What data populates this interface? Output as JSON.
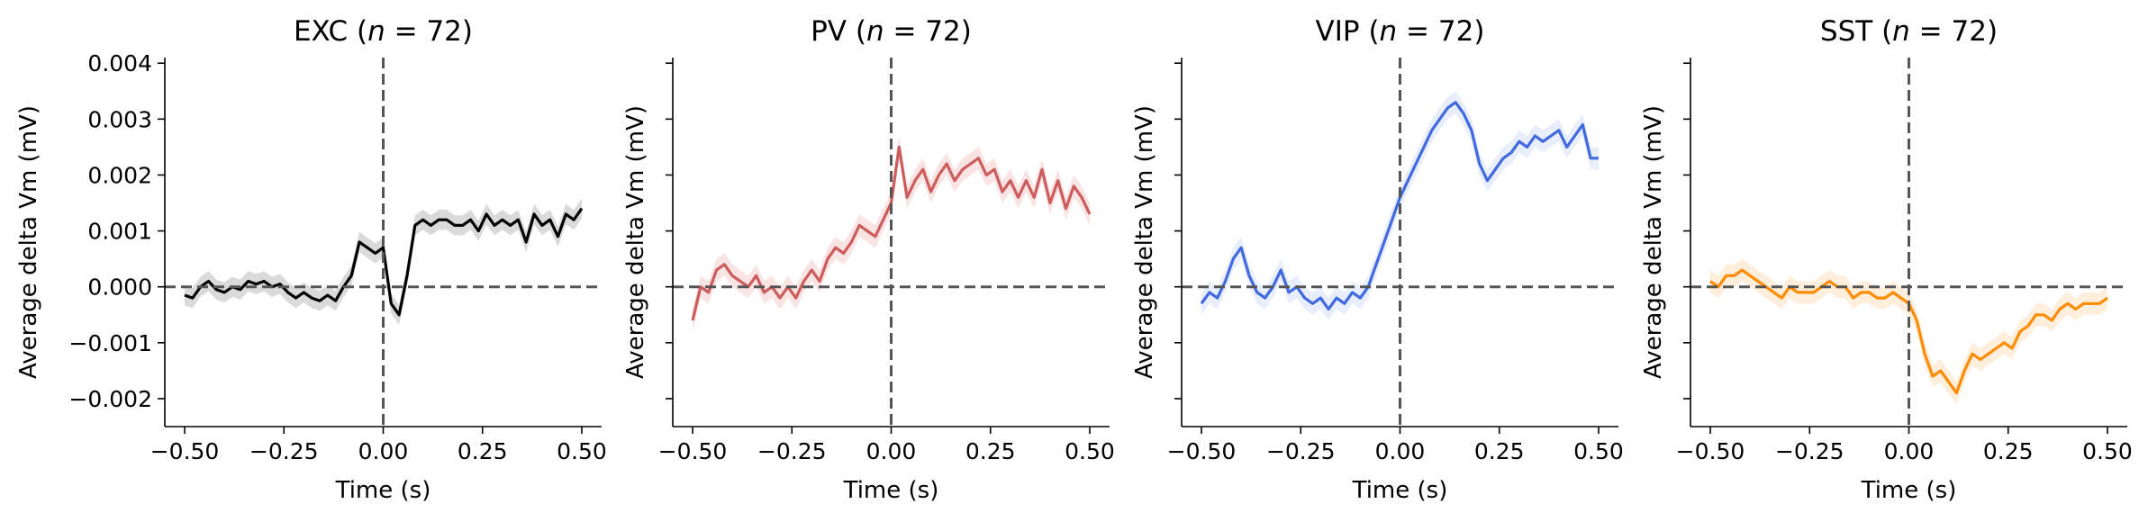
{
  "chart_data": [
    {
      "type": "line",
      "title": "EXC (",
      "n_symbol": "n",
      "n_eq": " = 72",
      "title_close": ")",
      "xlabel": "Time (s)",
      "ylabel": "Average delta Vm (mV)",
      "xlim": [
        -0.55,
        0.55
      ],
      "ylim": [
        -0.0025,
        0.0041
      ],
      "xticks": [
        -0.5,
        -0.25,
        0.0,
        0.25,
        0.5
      ],
      "xtick_labels": [
        "−0.50",
        "−0.25",
        "0.00",
        "0.25",
        "0.50"
      ],
      "yticks": [
        -0.002,
        -0.001,
        0.0,
        0.001,
        0.002,
        0.003,
        0.004
      ],
      "ytick_labels": [
        "−0.002",
        "−0.001",
        "0.000",
        "0.001",
        "0.002",
        "0.003",
        "0.004"
      ],
      "show_ytick_labels": true,
      "color": "#000000",
      "band_color": "#bbbbbb",
      "band_halfwidth": 0.00018,
      "series": [
        {
          "name": "EXC",
          "x": [
            -0.5,
            -0.48,
            -0.46,
            -0.44,
            -0.42,
            -0.4,
            -0.38,
            -0.36,
            -0.34,
            -0.32,
            -0.3,
            -0.28,
            -0.26,
            -0.24,
            -0.22,
            -0.2,
            -0.18,
            -0.16,
            -0.14,
            -0.12,
            -0.1,
            -0.08,
            -0.06,
            -0.04,
            -0.02,
            0.0,
            0.02,
            0.04,
            0.06,
            0.08,
            0.1,
            0.12,
            0.14,
            0.16,
            0.18,
            0.2,
            0.22,
            0.24,
            0.26,
            0.28,
            0.3,
            0.32,
            0.34,
            0.36,
            0.38,
            0.4,
            0.42,
            0.44,
            0.46,
            0.48,
            0.5
          ],
          "values": [
            -0.00015,
            -0.0002,
            0.0,
            0.0001,
            -5e-05,
            -0.0001,
            0.0,
            -5e-05,
            0.0001,
            5e-05,
            0.0001,
            0.0,
            5e-05,
            -0.0001,
            -0.0002,
            -0.0001,
            -0.0002,
            -0.00025,
            -0.00015,
            -0.00025,
            0.0,
            0.0002,
            0.0008,
            0.0007,
            0.0006,
            0.0007,
            -0.0003,
            -0.0005,
            0.0002,
            0.0011,
            0.0012,
            0.0011,
            0.0012,
            0.0012,
            0.0011,
            0.0011,
            0.0012,
            0.001,
            0.0013,
            0.0011,
            0.0012,
            0.0011,
            0.0012,
            0.0008,
            0.0013,
            0.0011,
            0.0012,
            0.0009,
            0.0013,
            0.0012,
            0.0014
          ]
        }
      ]
    },
    {
      "type": "line",
      "title": "PV (",
      "n_symbol": "n",
      "n_eq": " = 72",
      "title_close": ")",
      "xlabel": "Time (s)",
      "ylabel": "Average delta Vm (mV)",
      "xlim": [
        -0.55,
        0.55
      ],
      "ylim": [
        -0.0025,
        0.0041
      ],
      "xticks": [
        -0.5,
        -0.25,
        0.0,
        0.25,
        0.5
      ],
      "xtick_labels": [
        "−0.50",
        "−0.25",
        "0.00",
        "0.25",
        "0.50"
      ],
      "yticks": [
        -0.002,
        -0.001,
        0.0,
        0.001,
        0.002,
        0.003,
        0.004
      ],
      "ytick_labels": [
        "",
        "",
        "",
        "",
        "",
        "",
        ""
      ],
      "show_ytick_labels": false,
      "color": "#cd5c5c",
      "band_color": "#f4cccc",
      "band_halfwidth": 0.0002,
      "series": [
        {
          "name": "PV",
          "x": [
            -0.5,
            -0.48,
            -0.46,
            -0.44,
            -0.42,
            -0.4,
            -0.38,
            -0.36,
            -0.34,
            -0.32,
            -0.3,
            -0.28,
            -0.26,
            -0.24,
            -0.22,
            -0.2,
            -0.18,
            -0.16,
            -0.14,
            -0.12,
            -0.1,
            -0.08,
            -0.06,
            -0.04,
            -0.02,
            0.0,
            0.02,
            0.04,
            0.06,
            0.08,
            0.1,
            0.12,
            0.14,
            0.16,
            0.18,
            0.2,
            0.22,
            0.24,
            0.26,
            0.28,
            0.3,
            0.32,
            0.34,
            0.36,
            0.38,
            0.4,
            0.42,
            0.44,
            0.46,
            0.48,
            0.5
          ],
          "values": [
            -0.0006,
            0.0,
            -0.0001,
            0.0003,
            0.0004,
            0.0002,
            0.0001,
            0.0,
            0.0002,
            -0.0001,
            0.0,
            -0.0002,
            0.0,
            -0.0002,
            0.0001,
            0.0003,
            0.0001,
            0.0005,
            0.0007,
            0.0006,
            0.0008,
            0.0011,
            0.001,
            0.0009,
            0.0012,
            0.0015,
            0.0025,
            0.0016,
            0.0019,
            0.0021,
            0.0017,
            0.002,
            0.0022,
            0.0019,
            0.0021,
            0.0022,
            0.0023,
            0.002,
            0.0021,
            0.0017,
            0.0019,
            0.0016,
            0.0019,
            0.0016,
            0.0021,
            0.0015,
            0.0019,
            0.0014,
            0.0018,
            0.0016,
            0.0013
          ]
        }
      ]
    },
    {
      "type": "line",
      "title": "VIP (",
      "n_symbol": "n",
      "n_eq": " = 72",
      "title_close": ")",
      "xlabel": "Time (s)",
      "ylabel": "Average delta Vm (mV)",
      "xlim": [
        -0.55,
        0.55
      ],
      "ylim": [
        -0.0025,
        0.0041
      ],
      "xticks": [
        -0.5,
        -0.25,
        0.0,
        0.25,
        0.5
      ],
      "xtick_labels": [
        "−0.50",
        "−0.25",
        "0.00",
        "0.25",
        "0.50"
      ],
      "yticks": [
        -0.002,
        -0.001,
        0.0,
        0.001,
        0.002,
        0.003,
        0.004
      ],
      "ytick_labels": [
        "",
        "",
        "",
        "",
        "",
        "",
        ""
      ],
      "show_ytick_labels": false,
      "color": "#4169e1",
      "band_color": "#d6e0f7",
      "band_halfwidth": 0.0002,
      "series": [
        {
          "name": "VIP",
          "x": [
            -0.5,
            -0.48,
            -0.46,
            -0.44,
            -0.42,
            -0.4,
            -0.38,
            -0.36,
            -0.34,
            -0.32,
            -0.3,
            -0.28,
            -0.26,
            -0.24,
            -0.22,
            -0.2,
            -0.18,
            -0.16,
            -0.14,
            -0.12,
            -0.1,
            -0.08,
            -0.06,
            -0.04,
            -0.02,
            0.0,
            0.02,
            0.04,
            0.06,
            0.08,
            0.1,
            0.12,
            0.14,
            0.16,
            0.18,
            0.2,
            0.22,
            0.24,
            0.26,
            0.28,
            0.3,
            0.32,
            0.34,
            0.36,
            0.38,
            0.4,
            0.42,
            0.44,
            0.46,
            0.48,
            0.5
          ],
          "values": [
            -0.0003,
            -0.0001,
            -0.0002,
            0.0001,
            0.0005,
            0.0007,
            0.0002,
            -0.0001,
            -0.0002,
            0.0,
            0.0003,
            -0.0001,
            0.0,
            -0.0002,
            -0.0003,
            -0.0002,
            -0.0004,
            -0.0002,
            -0.0003,
            -0.0001,
            -0.0002,
            0.0,
            0.0004,
            0.0008,
            0.0012,
            0.0016,
            0.0019,
            0.0022,
            0.0025,
            0.0028,
            0.003,
            0.0032,
            0.0033,
            0.0031,
            0.0028,
            0.0022,
            0.0019,
            0.0021,
            0.0023,
            0.0024,
            0.0026,
            0.0025,
            0.0027,
            0.0026,
            0.0027,
            0.0028,
            0.0025,
            0.0027,
            0.0029,
            0.0023,
            0.0023
          ]
        }
      ]
    },
    {
      "type": "line",
      "title": "SST (",
      "n_symbol": "n",
      "n_eq": " = 72",
      "title_close": ")",
      "xlabel": "Time (s)",
      "ylabel": "Average delta Vm (mV)",
      "xlim": [
        -0.55,
        0.55
      ],
      "ylim": [
        -0.0025,
        0.0041
      ],
      "xticks": [
        -0.5,
        -0.25,
        0.0,
        0.25,
        0.5
      ],
      "xtick_labels": [
        "−0.50",
        "−0.25",
        "0.00",
        "0.25",
        "0.50"
      ],
      "yticks": [
        -0.002,
        -0.001,
        0.0,
        0.001,
        0.002,
        0.003,
        0.004
      ],
      "ytick_labels": [
        "",
        "",
        "",
        "",
        "",
        "",
        ""
      ],
      "show_ytick_labels": false,
      "color": "#ff8c00",
      "band_color": "#ffe0bd",
      "band_halfwidth": 0.0002,
      "series": [
        {
          "name": "SST",
          "x": [
            -0.5,
            -0.48,
            -0.46,
            -0.44,
            -0.42,
            -0.4,
            -0.38,
            -0.36,
            -0.34,
            -0.32,
            -0.3,
            -0.28,
            -0.26,
            -0.24,
            -0.22,
            -0.2,
            -0.18,
            -0.16,
            -0.14,
            -0.12,
            -0.1,
            -0.08,
            -0.06,
            -0.04,
            -0.02,
            0.0,
            0.02,
            0.04,
            0.06,
            0.08,
            0.1,
            0.12,
            0.14,
            0.16,
            0.18,
            0.2,
            0.22,
            0.24,
            0.26,
            0.28,
            0.3,
            0.32,
            0.34,
            0.36,
            0.38,
            0.4,
            0.42,
            0.44,
            0.46,
            0.48,
            0.5
          ],
          "values": [
            0.0001,
            0.0,
            0.0002,
            0.0002,
            0.0003,
            0.0002,
            0.0001,
            0.0,
            -0.0001,
            -0.0002,
            0.0,
            -0.0001,
            -0.0001,
            -0.0001,
            0.0,
            0.0001,
            0.0,
            0.0,
            -0.0002,
            -0.0001,
            -0.0001,
            -0.0002,
            -0.0002,
            -0.0001,
            -0.0002,
            -0.0003,
            -0.0006,
            -0.0012,
            -0.0016,
            -0.0015,
            -0.0017,
            -0.0019,
            -0.0015,
            -0.0012,
            -0.0013,
            -0.0012,
            -0.0011,
            -0.001,
            -0.0011,
            -0.0008,
            -0.0007,
            -0.0005,
            -0.0005,
            -0.0006,
            -0.0004,
            -0.0003,
            -0.0004,
            -0.0003,
            -0.0003,
            -0.0003,
            -0.0002
          ]
        }
      ]
    }
  ]
}
